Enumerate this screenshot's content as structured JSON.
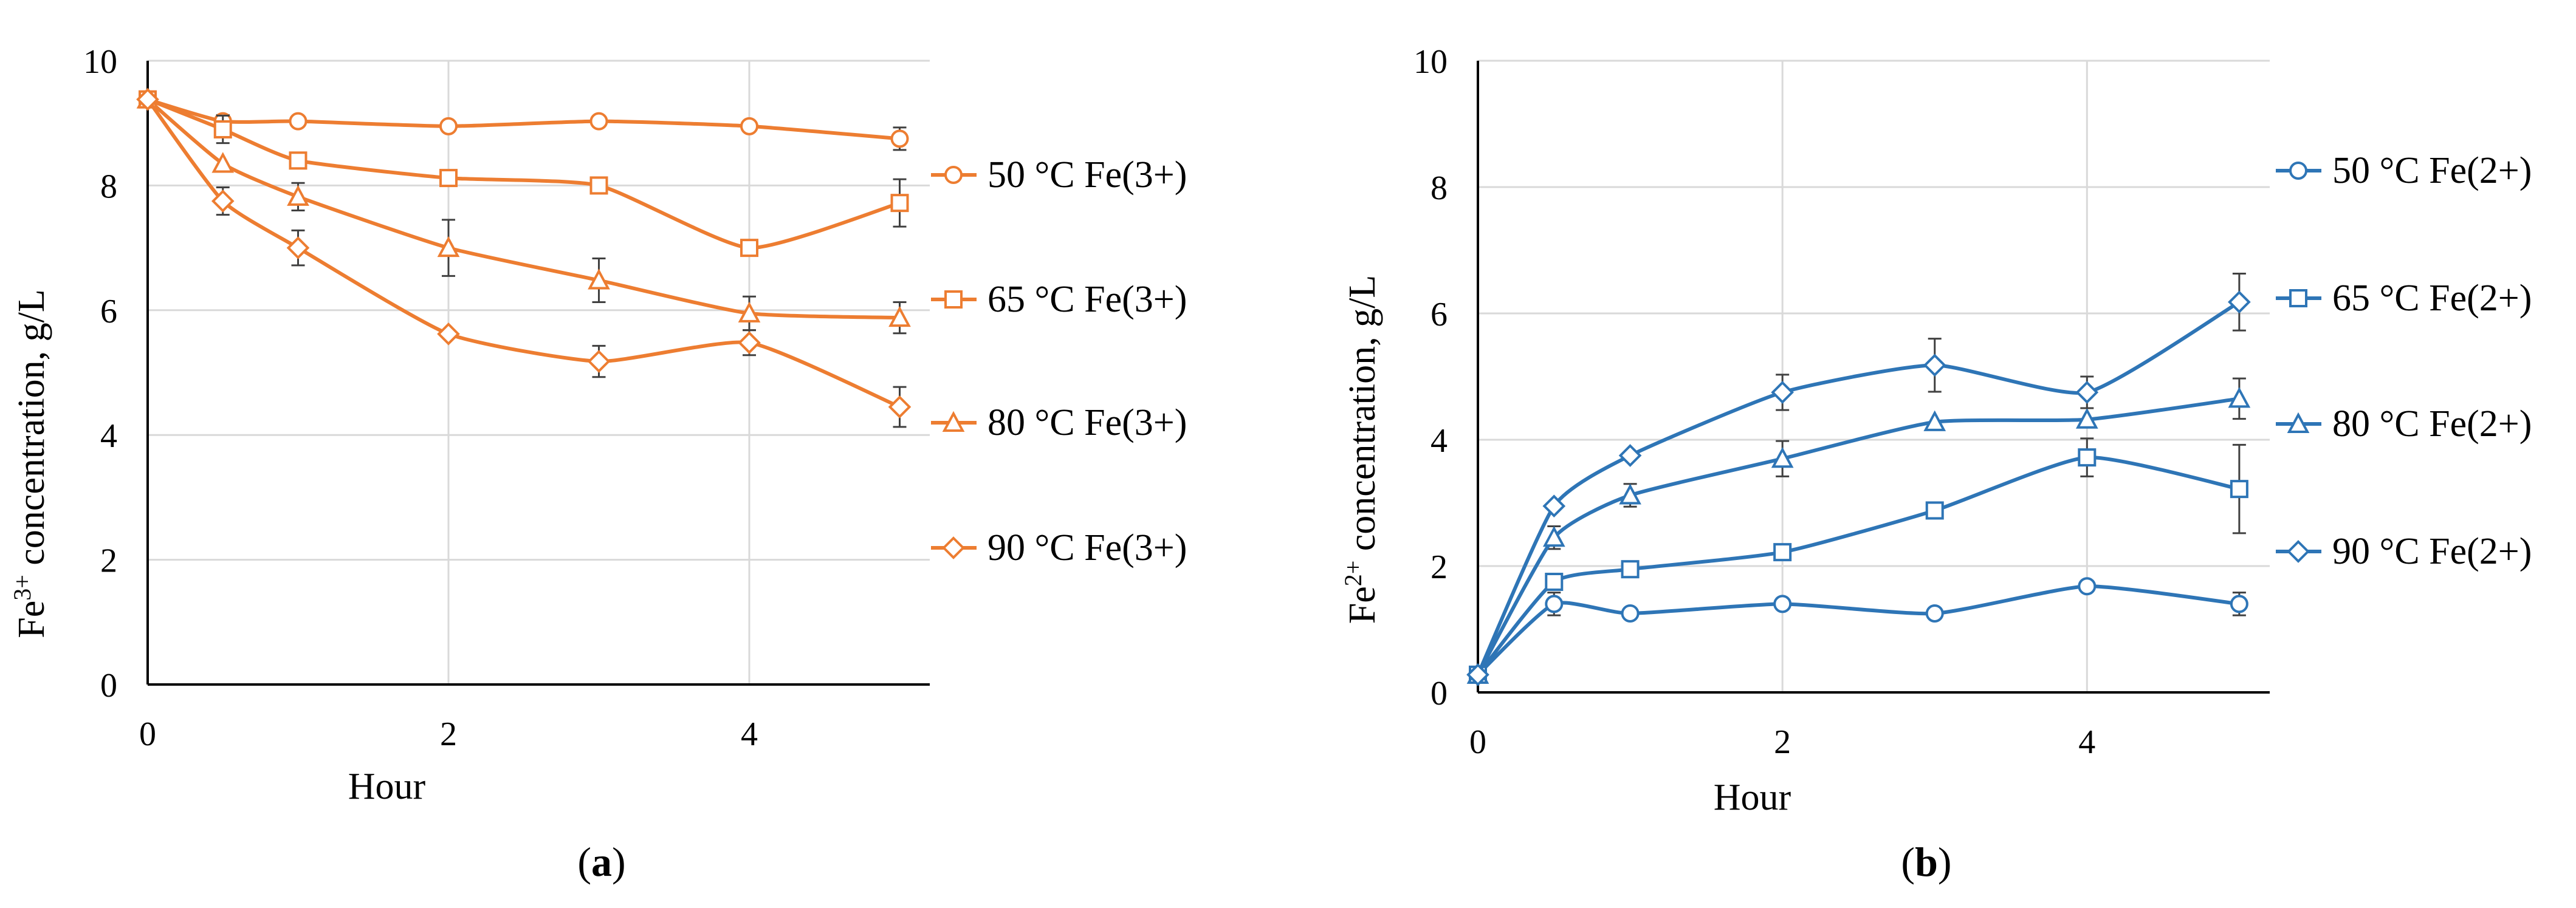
{
  "chart_data": [
    {
      "type": "line",
      "panel_label": "a",
      "xlabel": "Hour",
      "ylabel": "Fe3+ concentration, g/L",
      "ylabel_main": "Fe",
      "ylabel_sup": "3+",
      "ylabel_rest": " concentration, g/L",
      "xlim": [
        0,
        5.2
      ],
      "ylim": [
        0,
        10
      ],
      "xticks": [
        "0",
        "2",
        "4"
      ],
      "xtick_values": [
        0,
        2,
        4
      ],
      "yticks": [
        "0",
        "2",
        "4",
        "6",
        "8",
        "10"
      ],
      "ytick_values": [
        0,
        2,
        4,
        6,
        8,
        10
      ],
      "grid": true,
      "legend_position": "right",
      "color": "#ED7D31",
      "series": [
        {
          "name": "50 °C Fe(3+)",
          "marker": "circle",
          "x": [
            0,
            0.5,
            1,
            2,
            3,
            4,
            5
          ],
          "values": [
            9.38,
            9.03,
            9.03,
            8.95,
            9.03,
            8.95,
            8.75
          ],
          "errors": [
            0,
            0.1,
            0,
            0,
            0,
            0,
            0.18
          ]
        },
        {
          "name": "65 °C Fe(3+)",
          "marker": "square",
          "x": [
            0,
            0.5,
            1,
            2,
            3,
            4,
            5
          ],
          "values": [
            9.38,
            8.9,
            8.4,
            8.12,
            8.0,
            7.0,
            7.72
          ],
          "errors": [
            0,
            0.22,
            0,
            0,
            0,
            0,
            0.38
          ]
        },
        {
          "name": "80 °C Fe(3+)",
          "marker": "triangle",
          "x": [
            0,
            0.5,
            1,
            2,
            3,
            4,
            5
          ],
          "values": [
            9.38,
            8.35,
            7.82,
            7.0,
            6.48,
            5.95,
            5.88
          ],
          "errors": [
            0,
            0,
            0.22,
            0.45,
            0.35,
            0.27,
            0.25
          ]
        },
        {
          "name": "90 °C Fe(3+)",
          "marker": "diamond",
          "x": [
            0,
            0.5,
            1,
            2,
            3,
            4,
            5
          ],
          "values": [
            9.38,
            7.75,
            7.0,
            5.62,
            5.18,
            5.48,
            4.45
          ],
          "errors": [
            0,
            0.22,
            0.28,
            0,
            0.25,
            0.2,
            0.32
          ]
        }
      ]
    },
    {
      "type": "line",
      "panel_label": "b",
      "xlabel": "Hour",
      "ylabel": "Fe2+ concentration, g/L",
      "ylabel_main": "Fe",
      "ylabel_sup": "2+",
      "ylabel_rest": " concentration, g/L",
      "xlim": [
        0,
        5.2
      ],
      "ylim": [
        0,
        10
      ],
      "xticks": [
        "0",
        "2",
        "4"
      ],
      "xtick_values": [
        0,
        2,
        4
      ],
      "yticks": [
        "0",
        "2",
        "4",
        "6",
        "8",
        "10"
      ],
      "ytick_values": [
        0,
        2,
        4,
        6,
        8,
        10
      ],
      "grid": true,
      "legend_position": "right",
      "color": "#2E75B6",
      "series": [
        {
          "name": "50 °C Fe(2+)",
          "marker": "circle",
          "x": [
            0,
            0.5,
            1,
            2,
            3,
            4,
            5
          ],
          "values": [
            0.28,
            1.4,
            1.25,
            1.4,
            1.25,
            1.68,
            1.4
          ],
          "errors": [
            0,
            0.18,
            0,
            0,
            0,
            0,
            0.18
          ]
        },
        {
          "name": "65 °C Fe(2+)",
          "marker": "square",
          "x": [
            0,
            0.5,
            1,
            2,
            3,
            4,
            5
          ],
          "values": [
            0.28,
            1.75,
            1.95,
            2.22,
            2.88,
            3.72,
            3.22
          ],
          "errors": [
            0,
            0.12,
            0,
            0,
            0,
            0.3,
            0.7
          ]
        },
        {
          "name": "80 °C Fe(2+)",
          "marker": "triangle",
          "x": [
            0,
            0.5,
            1,
            2,
            3,
            4,
            5
          ],
          "values": [
            0.28,
            2.45,
            3.12,
            3.7,
            4.28,
            4.32,
            4.65
          ],
          "errors": [
            0,
            0.18,
            0.18,
            0.28,
            0,
            0,
            0.32
          ]
        },
        {
          "name": "90 °C Fe(2+)",
          "marker": "diamond",
          "x": [
            0,
            0.5,
            1,
            2,
            3,
            4,
            5
          ],
          "values": [
            0.28,
            2.95,
            3.75,
            4.75,
            5.18,
            4.75,
            6.18
          ],
          "errors": [
            0,
            0,
            0,
            0.28,
            0.42,
            0.25,
            0.45
          ]
        }
      ]
    }
  ]
}
